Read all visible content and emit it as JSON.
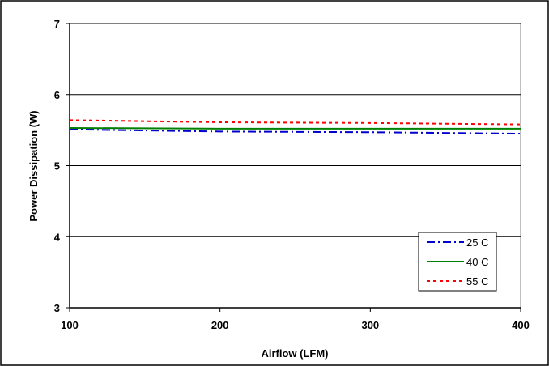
{
  "chart_data": {
    "type": "line",
    "xlabel": "Airflow (LFM)",
    "ylabel": "Power Dissipation (W)",
    "xlim": [
      100,
      400
    ],
    "ylim": [
      3,
      7
    ],
    "x_ticks": [
      "100",
      "200",
      "300",
      "400"
    ],
    "y_ticks": [
      "3",
      "4",
      "5",
      "6",
      "7"
    ],
    "grid": "horizontal",
    "legend_position": "bottom-right",
    "x": [
      100,
      200,
      300,
      400
    ],
    "series": [
      {
        "name": "25 C",
        "values": [
          5.51,
          5.48,
          5.47,
          5.45
        ],
        "color": "#0000cc",
        "style": "dash-dot"
      },
      {
        "name": "40 C",
        "values": [
          5.53,
          5.52,
          5.52,
          5.52
        ],
        "color": "#008000",
        "style": "solid"
      },
      {
        "name": "55 C",
        "values": [
          5.64,
          5.61,
          5.6,
          5.58
        ],
        "color": "#ff0000",
        "style": "dotted"
      }
    ]
  }
}
